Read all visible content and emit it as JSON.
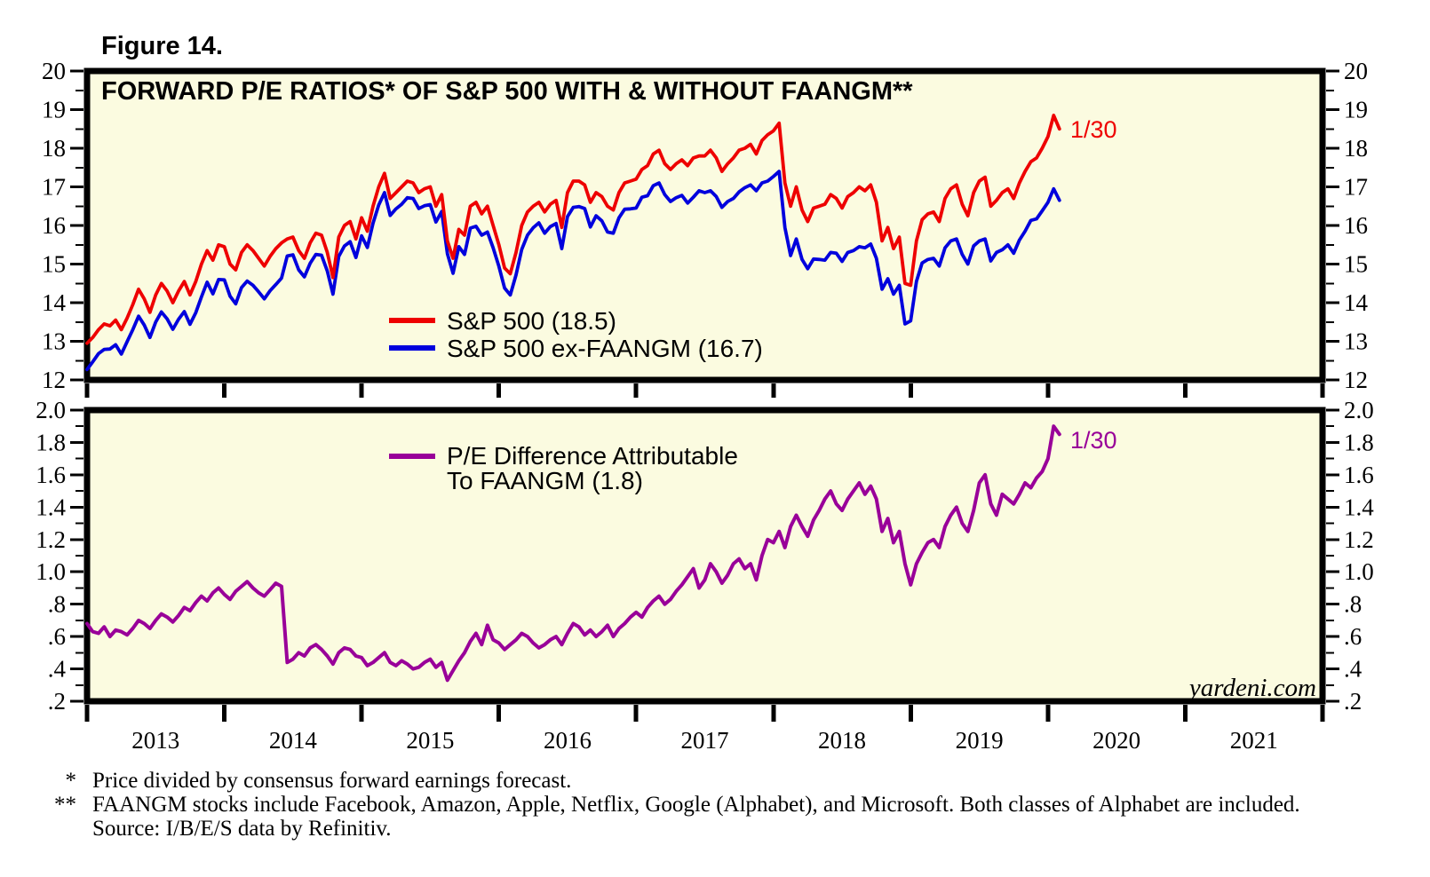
{
  "figure_label": "Figure 14.",
  "watermark": "yardeni.com",
  "colors": {
    "background": "#fbfbe0",
    "border": "#000000",
    "sp500": "#ee0000",
    "sp500_ex_faangm": "#0000dd",
    "pe_difference": "#990099"
  },
  "x_axis": {
    "years": [
      "2013",
      "2014",
      "2015",
      "2016",
      "2017",
      "2018",
      "2019",
      "2020",
      "2021"
    ]
  },
  "y_axis": {
    "top_labels": [
      "20",
      "19",
      "18",
      "17",
      "16",
      "15",
      "14",
      "13",
      "12"
    ],
    "bottom_labels": [
      "2.0",
      "1.8",
      "1.6",
      "1.4",
      "1.2",
      "1.0",
      ".8",
      ".6",
      ".4",
      ".2"
    ]
  },
  "top_panel": {
    "title": "FORWARD P/E RATIOS* OF S&P 500 WITH & WITHOUT FAANGM**",
    "legend": [
      {
        "label": "S&P 500 (18.5)",
        "color": "#ee0000"
      },
      {
        "label": "S&P 500 ex-FAANGM (16.7)",
        "color": "#0000dd"
      }
    ],
    "annotation": "1/30"
  },
  "bottom_panel": {
    "legend_line1": "P/E Difference Attributable",
    "legend_line2": "To FAANGM (1.8)",
    "annotation": "1/30"
  },
  "footnotes": {
    "star1_marker": "*",
    "star1_text": "Price divided by consensus forward earnings forecast.",
    "star2_marker": "**",
    "star2_text": "FAANGM stocks include Facebook, Amazon, Apple, Netflix, Google (Alphabet), and Microsoft. Both classes of Alphabet are included.",
    "source_text": "Source: I/B/E/S data by Refinitiv."
  },
  "chart_data": [
    {
      "type": "line",
      "panel": "top",
      "title": "FORWARD P/E RATIOS* OF S&P 500 WITH & WITHOUT FAANGM**",
      "xlim": [
        2013,
        2022
      ],
      "ylim": [
        12,
        20
      ],
      "ytick_step": 1,
      "yminor_step": 0.5,
      "x_start": 2013,
      "points_per_year": 24,
      "last_date_label": "1/30",
      "series": [
        {
          "name": "S&P 500 (18.5)",
          "color": "#ee0000",
          "last_value": 18.5,
          "values": [
            12.95,
            13.1,
            13.3,
            13.45,
            13.4,
            13.55,
            13.3,
            13.6,
            13.95,
            14.35,
            14.1,
            13.75,
            14.2,
            14.5,
            14.3,
            14.0,
            14.3,
            14.55,
            14.2,
            14.55,
            15.0,
            15.35,
            15.1,
            15.5,
            15.45,
            15.0,
            14.85,
            15.3,
            15.5,
            15.35,
            15.15,
            14.95,
            15.2,
            15.4,
            15.55,
            15.65,
            15.7,
            15.35,
            15.15,
            15.55,
            15.8,
            15.75,
            15.3,
            14.65,
            15.7,
            16.0,
            16.1,
            15.65,
            16.2,
            15.85,
            16.5,
            17.0,
            17.35,
            16.7,
            16.85,
            17.0,
            17.15,
            17.1,
            16.85,
            16.95,
            17.0,
            16.5,
            16.8,
            15.6,
            15.15,
            15.9,
            15.75,
            16.5,
            16.6,
            16.3,
            16.5,
            16.0,
            15.5,
            14.9,
            14.75,
            15.3,
            16.0,
            16.35,
            16.5,
            16.6,
            16.35,
            16.55,
            16.65,
            15.95,
            16.85,
            17.15,
            17.15,
            17.05,
            16.6,
            16.85,
            16.75,
            16.5,
            16.4,
            16.85,
            17.1,
            17.15,
            17.2,
            17.45,
            17.55,
            17.85,
            17.95,
            17.6,
            17.45,
            17.6,
            17.7,
            17.55,
            17.75,
            17.8,
            17.8,
            17.95,
            17.75,
            17.4,
            17.6,
            17.75,
            17.95,
            18.0,
            18.1,
            17.85,
            18.2,
            18.35,
            18.45,
            18.65,
            17.1,
            16.5,
            17.0,
            16.4,
            16.1,
            16.45,
            16.5,
            16.55,
            16.8,
            16.7,
            16.45,
            16.75,
            16.85,
            17.0,
            16.9,
            17.05,
            16.6,
            15.6,
            15.95,
            15.4,
            15.7,
            14.5,
            14.45,
            15.6,
            16.15,
            16.3,
            16.35,
            16.1,
            16.7,
            16.95,
            17.05,
            16.55,
            16.25,
            16.85,
            17.15,
            17.25,
            16.5,
            16.65,
            16.85,
            16.95,
            16.7,
            17.1,
            17.4,
            17.65,
            17.75,
            18.0,
            18.3,
            18.85,
            18.5
          ]
        },
        {
          "name": "S&P 500 ex-FAANGM (16.7)",
          "color": "#0000dd",
          "last_value": 16.7,
          "values": [
            12.27,
            12.47,
            12.68,
            12.79,
            12.8,
            12.91,
            12.67,
            12.99,
            13.3,
            13.65,
            13.42,
            13.1,
            13.5,
            13.76,
            13.58,
            13.31,
            13.57,
            13.77,
            13.44,
            13.74,
            14.15,
            14.53,
            14.23,
            14.6,
            14.59,
            14.17,
            13.97,
            14.39,
            14.56,
            14.45,
            14.28,
            14.1,
            14.31,
            14.47,
            14.64,
            15.21,
            15.24,
            14.85,
            14.67,
            15.02,
            15.25,
            15.23,
            14.82,
            14.22,
            15.2,
            15.47,
            15.58,
            15.17,
            15.73,
            15.43,
            16.06,
            16.53,
            16.85,
            16.26,
            16.43,
            16.55,
            16.72,
            16.7,
            16.44,
            16.51,
            16.54,
            16.09,
            16.36,
            15.27,
            14.76,
            15.45,
            15.25,
            15.93,
            15.98,
            15.75,
            15.83,
            15.42,
            14.94,
            14.38,
            14.2,
            14.72,
            15.38,
            15.75,
            15.94,
            16.07,
            15.8,
            15.97,
            16.05,
            15.4,
            16.23,
            16.47,
            16.49,
            16.44,
            15.96,
            16.25,
            16.12,
            15.83,
            15.8,
            16.2,
            16.42,
            16.43,
            16.45,
            16.73,
            16.77,
            17.03,
            17.1,
            16.8,
            16.62,
            16.72,
            16.78,
            16.58,
            16.73,
            16.9,
            16.85,
            16.9,
            16.75,
            16.47,
            16.62,
            16.7,
            16.87,
            16.98,
            17.05,
            16.9,
            17.1,
            17.15,
            17.27,
            17.4,
            15.95,
            15.22,
            15.65,
            15.12,
            14.88,
            15.13,
            15.12,
            15.1,
            15.3,
            15.28,
            15.07,
            15.3,
            15.35,
            15.45,
            15.42,
            15.52,
            15.15,
            14.35,
            14.62,
            14.22,
            14.45,
            13.45,
            13.53,
            14.55,
            15.03,
            15.12,
            15.15,
            14.95,
            15.42,
            15.6,
            15.65,
            15.25,
            15.0,
            15.47,
            15.6,
            15.65,
            15.08,
            15.3,
            15.37,
            15.5,
            15.28,
            15.62,
            15.85,
            16.13,
            16.17,
            16.38,
            16.6,
            16.95,
            16.65
          ]
        }
      ]
    },
    {
      "type": "line",
      "panel": "bottom",
      "xlim": [
        2013,
        2022
      ],
      "ylim": [
        0.2,
        2.0
      ],
      "ytick_step": 0.2,
      "yminor_step": 0.1,
      "x_start": 2013,
      "points_per_year": 24,
      "last_date_label": "1/30",
      "series": [
        {
          "name": "P/E Difference Attributable To FAANGM (1.8)",
          "color": "#990099",
          "last_value": 1.8,
          "values": [
            0.68,
            0.63,
            0.62,
            0.66,
            0.6,
            0.64,
            0.63,
            0.61,
            0.65,
            0.7,
            0.68,
            0.65,
            0.7,
            0.74,
            0.72,
            0.69,
            0.73,
            0.78,
            0.76,
            0.81,
            0.85,
            0.82,
            0.87,
            0.9,
            0.86,
            0.83,
            0.88,
            0.91,
            0.94,
            0.9,
            0.87,
            0.85,
            0.89,
            0.93,
            0.91,
            0.44,
            0.46,
            0.5,
            0.48,
            0.53,
            0.55,
            0.52,
            0.48,
            0.43,
            0.5,
            0.53,
            0.52,
            0.48,
            0.47,
            0.42,
            0.44,
            0.47,
            0.5,
            0.44,
            0.42,
            0.45,
            0.43,
            0.4,
            0.41,
            0.44,
            0.46,
            0.41,
            0.44,
            0.33,
            0.39,
            0.45,
            0.5,
            0.57,
            0.62,
            0.55,
            0.67,
            0.58,
            0.56,
            0.52,
            0.55,
            0.58,
            0.62,
            0.6,
            0.56,
            0.53,
            0.55,
            0.58,
            0.6,
            0.55,
            0.62,
            0.68,
            0.66,
            0.61,
            0.64,
            0.6,
            0.63,
            0.67,
            0.6,
            0.65,
            0.68,
            0.72,
            0.75,
            0.72,
            0.78,
            0.82,
            0.85,
            0.8,
            0.83,
            0.88,
            0.92,
            0.97,
            1.02,
            0.9,
            0.95,
            1.05,
            1.0,
            0.93,
            0.98,
            1.05,
            1.08,
            1.02,
            1.05,
            0.95,
            1.1,
            1.2,
            1.18,
            1.25,
            1.15,
            1.28,
            1.35,
            1.28,
            1.22,
            1.32,
            1.38,
            1.45,
            1.5,
            1.42,
            1.38,
            1.45,
            1.5,
            1.55,
            1.48,
            1.53,
            1.45,
            1.25,
            1.33,
            1.18,
            1.25,
            1.05,
            0.92,
            1.05,
            1.12,
            1.18,
            1.2,
            1.15,
            1.28,
            1.35,
            1.4,
            1.3,
            1.25,
            1.38,
            1.55,
            1.6,
            1.42,
            1.35,
            1.48,
            1.45,
            1.42,
            1.48,
            1.55,
            1.52,
            1.58,
            1.62,
            1.7,
            1.9,
            1.85
          ]
        }
      ]
    }
  ]
}
